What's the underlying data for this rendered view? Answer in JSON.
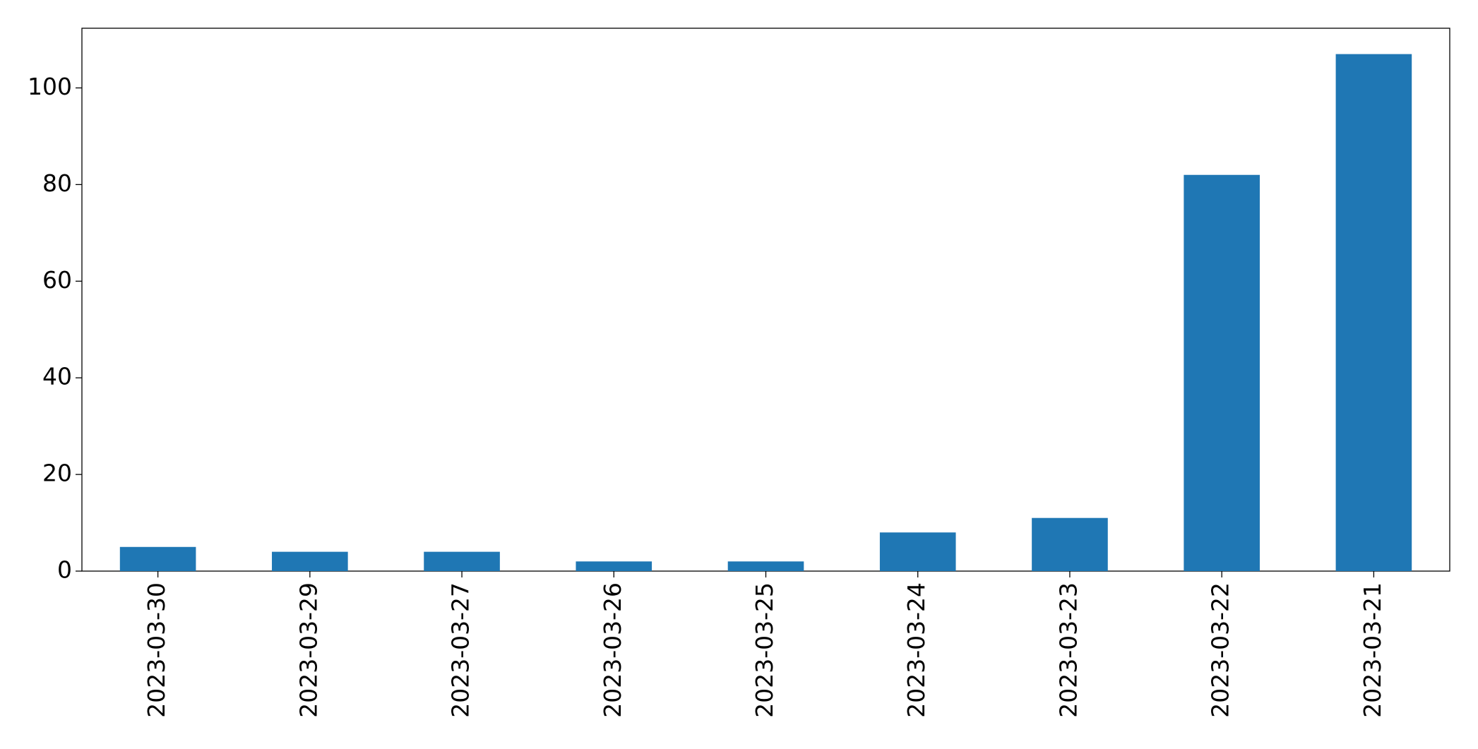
{
  "chart_data": {
    "type": "bar",
    "categories": [
      "2023-03-30",
      "2023-03-29",
      "2023-03-27",
      "2023-03-26",
      "2023-03-25",
      "2023-03-24",
      "2023-03-23",
      "2023-03-22",
      "2023-03-21"
    ],
    "values": [
      5,
      4,
      4,
      2,
      2,
      8,
      11,
      82,
      107
    ],
    "color": "#1f77b4",
    "ylim": [
      0,
      112.35
    ],
    "yticks": [
      0,
      20,
      40,
      60,
      80,
      100
    ],
    "grid": false
  }
}
